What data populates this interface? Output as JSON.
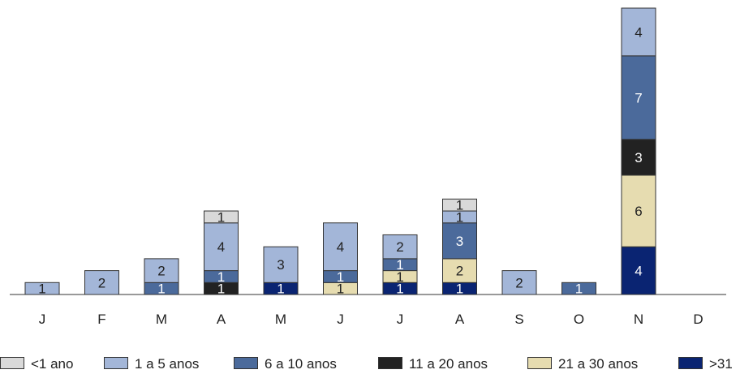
{
  "chart_data": {
    "type": "bar",
    "stacked": true,
    "categories": [
      "J",
      "F",
      "M",
      "A",
      "M",
      "J",
      "J",
      "A",
      "S",
      "O",
      "N",
      "D"
    ],
    "series": [
      {
        "name": ">31",
        "color": "#0a2472",
        "label_color": "#ffffff",
        "values": [
          0,
          0,
          0,
          0,
          1,
          0,
          1,
          1,
          0,
          0,
          4,
          0
        ]
      },
      {
        "name": "21 a 30 anos",
        "color": "#e6dcb0",
        "label_color": "#222222",
        "values": [
          0,
          0,
          0,
          0,
          0,
          1,
          1,
          2,
          0,
          0,
          6,
          0
        ]
      },
      {
        "name": "11 a 20 anos",
        "color": "#222222",
        "label_color": "#ffffff",
        "values": [
          0,
          0,
          0,
          1,
          0,
          0,
          0,
          0,
          0,
          0,
          3,
          0
        ]
      },
      {
        "name": "6 a 10 anos",
        "color": "#4b6a9b",
        "label_color": "#ffffff",
        "values": [
          0,
          0,
          1,
          1,
          0,
          1,
          1,
          3,
          0,
          1,
          7,
          0
        ]
      },
      {
        "name": "1 a 5 anos",
        "color": "#a3b6d8",
        "label_color": "#222222",
        "values": [
          1,
          2,
          2,
          4,
          3,
          4,
          2,
          1,
          2,
          0,
          4,
          0
        ]
      },
      {
        "name": "<1 ano",
        "color": "#d9d9d9",
        "label_color": "#222222",
        "values": [
          0,
          0,
          0,
          1,
          0,
          0,
          0,
          1,
          0,
          0,
          0,
          0
        ]
      }
    ],
    "legend_order": [
      "<1 ano",
      "1 a 5 anos",
      "6 a 10 anos",
      "11 a 20 anos",
      "21 a 30 anos",
      ">31"
    ],
    "title": "",
    "xlabel": "",
    "ylabel": "",
    "ylim": [
      0,
      24
    ],
    "grid": false,
    "legend_position": "bottom"
  }
}
